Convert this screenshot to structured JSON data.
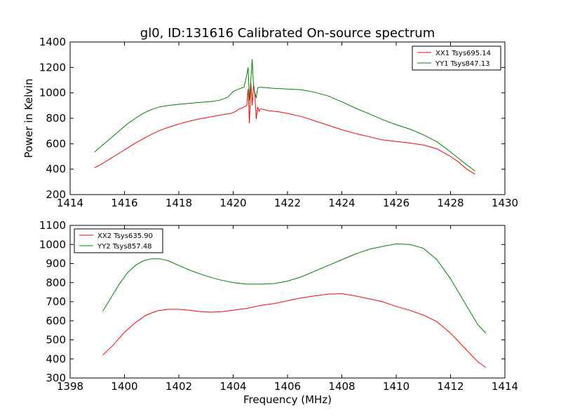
{
  "figure": {
    "title": "gl0, ID:131616 Calibrated On-source spectrum"
  },
  "chart_data": [
    {
      "type": "line",
      "title": "gl0, ID:131616 Calibrated On-source spectrum",
      "xlabel": "",
      "ylabel": "Power in Kelvin",
      "xlim": [
        1414,
        1430
      ],
      "ylim": [
        200,
        1400
      ],
      "xticks": [
        1414,
        1416,
        1418,
        1420,
        1422,
        1424,
        1426,
        1428,
        1430
      ],
      "yticks": [
        200,
        400,
        600,
        800,
        1000,
        1200,
        1400
      ],
      "grid": false,
      "legend_position": "top-right",
      "series": [
        {
          "name": "XX1 Tsys695.14",
          "color": "#ff0000",
          "points": [
            [
              1414.9,
              410
            ],
            [
              1415.2,
              445
            ],
            [
              1415.5,
              485
            ],
            [
              1415.8,
              525
            ],
            [
              1416.1,
              565
            ],
            [
              1416.4,
              605
            ],
            [
              1416.7,
              640
            ],
            [
              1417.0,
              675
            ],
            [
              1417.3,
              705
            ],
            [
              1417.6,
              728
            ],
            [
              1418.0,
              755
            ],
            [
              1418.4,
              778
            ],
            [
              1418.8,
              797
            ],
            [
              1419.2,
              812
            ],
            [
              1419.6,
              828
            ],
            [
              1419.9,
              838
            ],
            [
              1420.0,
              845
            ],
            [
              1420.1,
              855
            ],
            [
              1420.2,
              872
            ],
            [
              1420.3,
              878
            ],
            [
              1420.4,
              890
            ],
            [
              1420.5,
              900
            ],
            [
              1420.55,
              1030
            ],
            [
              1420.6,
              760
            ],
            [
              1420.65,
              1080
            ],
            [
              1420.7,
              900
            ],
            [
              1420.75,
              1070
            ],
            [
              1420.8,
              980
            ],
            [
              1420.85,
              795
            ],
            [
              1420.9,
              890
            ],
            [
              1420.95,
              855
            ],
            [
              1421.0,
              875
            ],
            [
              1421.3,
              860
            ],
            [
              1421.7,
              850
            ],
            [
              1422.0,
              838
            ],
            [
              1422.5,
              815
            ],
            [
              1423.0,
              780
            ],
            [
              1423.5,
              745
            ],
            [
              1424.0,
              710
            ],
            [
              1424.5,
              680
            ],
            [
              1425.0,
              655
            ],
            [
              1425.5,
              630
            ],
            [
              1426.0,
              618
            ],
            [
              1426.5,
              605
            ],
            [
              1427.0,
              590
            ],
            [
              1427.5,
              560
            ],
            [
              1428.0,
              500
            ],
            [
              1428.3,
              455
            ],
            [
              1428.6,
              400
            ],
            [
              1428.9,
              360
            ]
          ]
        },
        {
          "name": "YY1 Tsys847.13",
          "color": "#008000",
          "points": [
            [
              1414.9,
              535
            ],
            [
              1415.2,
              590
            ],
            [
              1415.5,
              645
            ],
            [
              1415.8,
              700
            ],
            [
              1416.1,
              755
            ],
            [
              1416.4,
              800
            ],
            [
              1416.7,
              840
            ],
            [
              1417.0,
              870
            ],
            [
              1417.3,
              890
            ],
            [
              1417.6,
              900
            ],
            [
              1418.0,
              910
            ],
            [
              1418.4,
              918
            ],
            [
              1418.8,
              925
            ],
            [
              1419.2,
              932
            ],
            [
              1419.5,
              942
            ],
            [
              1419.8,
              965
            ],
            [
              1420.0,
              1010
            ],
            [
              1420.2,
              1030
            ],
            [
              1420.4,
              1045
            ],
            [
              1420.5,
              1140
            ],
            [
              1420.55,
              1200
            ],
            [
              1420.6,
              940
            ],
            [
              1420.65,
              1100
            ],
            [
              1420.7,
              1265
            ],
            [
              1420.75,
              1050
            ],
            [
              1420.8,
              1000
            ],
            [
              1420.85,
              960
            ],
            [
              1420.9,
              1040
            ],
            [
              1421.0,
              1045
            ],
            [
              1421.5,
              1035
            ],
            [
              1422.0,
              1030
            ],
            [
              1422.5,
              1025
            ],
            [
              1423.0,
              1005
            ],
            [
              1423.5,
              975
            ],
            [
              1424.0,
              930
            ],
            [
              1424.5,
              880
            ],
            [
              1425.0,
              835
            ],
            [
              1425.5,
              790
            ],
            [
              1426.0,
              750
            ],
            [
              1426.5,
              715
            ],
            [
              1427.0,
              670
            ],
            [
              1427.5,
              615
            ],
            [
              1428.0,
              535
            ],
            [
              1428.5,
              450
            ],
            [
              1428.9,
              385
            ]
          ]
        }
      ]
    },
    {
      "type": "line",
      "title": "",
      "xlabel": "Frequency (MHz)",
      "ylabel": "",
      "xlim": [
        1398,
        1414
      ],
      "ylim": [
        300,
        1100
      ],
      "xticks": [
        1398,
        1400,
        1402,
        1404,
        1406,
        1408,
        1410,
        1412,
        1414
      ],
      "yticks": [
        300,
        400,
        500,
        600,
        700,
        800,
        900,
        1000,
        1100
      ],
      "grid": false,
      "legend_position": "top-left",
      "series": [
        {
          "name": "XX2 Tsys635.90",
          "color": "#ff0000",
          "points": [
            [
              1399.2,
              420
            ],
            [
              1399.6,
              475
            ],
            [
              1400.0,
              540
            ],
            [
              1400.4,
              590
            ],
            [
              1400.8,
              630
            ],
            [
              1401.2,
              652
            ],
            [
              1401.6,
              660
            ],
            [
              1402.0,
              660
            ],
            [
              1402.4,
              655
            ],
            [
              1402.8,
              648
            ],
            [
              1403.2,
              645
            ],
            [
              1403.6,
              648
            ],
            [
              1404.0,
              655
            ],
            [
              1404.5,
              665
            ],
            [
              1405.0,
              680
            ],
            [
              1405.5,
              690
            ],
            [
              1406.0,
              705
            ],
            [
              1406.5,
              720
            ],
            [
              1407.0,
              730
            ],
            [
              1407.5,
              740
            ],
            [
              1408.0,
              742
            ],
            [
              1408.5,
              730
            ],
            [
              1409.0,
              715
            ],
            [
              1409.5,
              700
            ],
            [
              1410.0,
              675
            ],
            [
              1410.5,
              655
            ],
            [
              1411.0,
              630
            ],
            [
              1411.5,
              595
            ],
            [
              1412.0,
              535
            ],
            [
              1412.5,
              460
            ],
            [
              1413.0,
              385
            ],
            [
              1413.3,
              355
            ]
          ]
        },
        {
          "name": "YY2 Tsys857.48",
          "color": "#008000",
          "points": [
            [
              1399.2,
              650
            ],
            [
              1399.5,
              720
            ],
            [
              1399.8,
              790
            ],
            [
              1400.1,
              850
            ],
            [
              1400.4,
              890
            ],
            [
              1400.7,
              915
            ],
            [
              1401.0,
              925
            ],
            [
              1401.3,
              925
            ],
            [
              1401.6,
              915
            ],
            [
              1402.0,
              890
            ],
            [
              1402.5,
              860
            ],
            [
              1403.0,
              835
            ],
            [
              1403.5,
              815
            ],
            [
              1404.0,
              800
            ],
            [
              1404.5,
              792
            ],
            [
              1405.0,
              792
            ],
            [
              1405.5,
              795
            ],
            [
              1406.0,
              808
            ],
            [
              1406.5,
              830
            ],
            [
              1407.0,
              860
            ],
            [
              1407.5,
              890
            ],
            [
              1408.0,
              920
            ],
            [
              1408.5,
              950
            ],
            [
              1409.0,
              975
            ],
            [
              1409.5,
              990
            ],
            [
              1410.0,
              1003
            ],
            [
              1410.5,
              1000
            ],
            [
              1411.0,
              980
            ],
            [
              1411.5,
              920
            ],
            [
              1412.0,
              820
            ],
            [
              1412.5,
              700
            ],
            [
              1413.0,
              580
            ],
            [
              1413.3,
              535
            ]
          ]
        }
      ]
    }
  ]
}
